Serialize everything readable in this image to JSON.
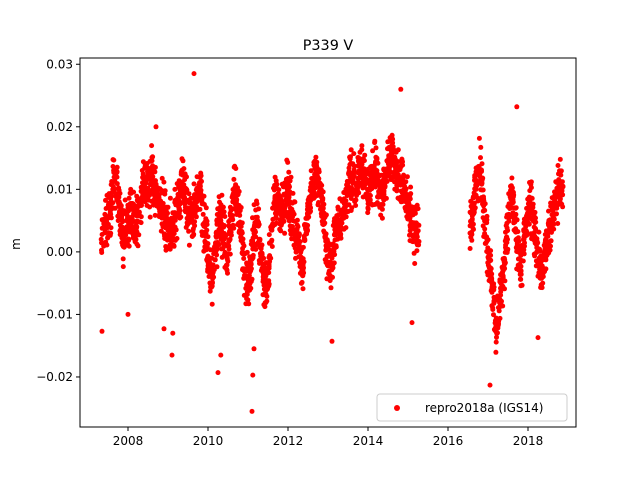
{
  "chart_data": {
    "type": "scatter",
    "title": "P339 V",
    "xlabel": "",
    "ylabel": "m",
    "xlim": [
      2006.8,
      2019.2
    ],
    "ylim": [
      -0.028,
      0.031
    ],
    "x_ticks": [
      2008,
      2010,
      2012,
      2014,
      2016,
      2018
    ],
    "x_tick_labels": [
      "2008",
      "2010",
      "2012",
      "2014",
      "2016",
      "2018"
    ],
    "y_ticks": [
      -0.02,
      -0.01,
      0.0,
      0.01,
      0.02,
      0.03
    ],
    "y_tick_labels": [
      "−0.02",
      "−0.01",
      "0.00",
      "0.01",
      "0.02",
      "0.03"
    ],
    "grid": false,
    "legend_position": "lower right",
    "series": [
      {
        "name": "repro2018a (IGS14)",
        "color": "#ff0000",
        "marker": "circle",
        "x": [
          2007.33,
          2007.45,
          2007.55,
          2007.62,
          2007.7,
          2007.78,
          2007.85,
          2007.92,
          2008.0,
          2008.08,
          2008.15,
          2008.22,
          2008.3,
          2008.38,
          2008.45,
          2008.52,
          2008.6,
          2008.68,
          2008.75,
          2008.82,
          2008.9,
          2008.98,
          2009.05,
          2009.12,
          2009.2,
          2009.28,
          2009.35,
          2009.42,
          2009.5,
          2009.58,
          2009.65,
          2009.72,
          2009.8,
          2009.88,
          2009.95,
          2010.02,
          2010.1,
          2010.18,
          2010.25,
          2010.32,
          2010.4,
          2010.48,
          2010.55,
          2010.62,
          2010.7,
          2010.78,
          2010.85,
          2010.92,
          2011.0,
          2011.08,
          2011.15,
          2011.22,
          2011.3,
          2011.38,
          2011.45,
          2011.52,
          2011.6,
          2011.68,
          2011.75,
          2011.82,
          2011.9,
          2011.98,
          2012.05,
          2012.12,
          2012.2,
          2012.28,
          2012.35,
          2012.42,
          2012.5,
          2012.58,
          2012.65,
          2012.72,
          2012.8,
          2012.88,
          2012.95,
          2013.02,
          2013.1,
          2013.18,
          2013.25,
          2013.32,
          2013.4,
          2013.48,
          2013.55,
          2013.62,
          2013.7,
          2013.78,
          2013.85,
          2013.92,
          2014.0,
          2014.08,
          2014.15,
          2014.22,
          2014.3,
          2014.38,
          2014.45,
          2014.52,
          2014.6,
          2014.68,
          2014.75,
          2014.82,
          2014.9,
          2014.98,
          2015.05,
          2015.12,
          2015.2,
          2016.55,
          2016.62,
          2016.7,
          2016.78,
          2016.85,
          2016.92,
          2017.0,
          2017.08,
          2017.15,
          2017.22,
          2017.3,
          2017.38,
          2017.45,
          2017.52,
          2017.6,
          2017.68,
          2017.75,
          2017.82,
          2017.9,
          2017.98,
          2018.05,
          2018.12,
          2018.2,
          2018.28,
          2018.35,
          2018.42,
          2018.5,
          2018.58,
          2018.65,
          2018.72,
          2018.8
        ],
        "y": [
          0.002,
          0.004,
          0.006,
          0.01,
          0.012,
          0.008,
          0.004,
          0.002,
          0.005,
          0.007,
          0.006,
          0.004,
          0.008,
          0.01,
          0.011,
          0.009,
          0.012,
          0.01,
          0.008,
          0.007,
          0.006,
          0.005,
          0.003,
          0.004,
          0.006,
          0.008,
          0.011,
          0.01,
          0.007,
          0.005,
          0.006,
          0.008,
          0.009,
          0.006,
          0.003,
          -0.002,
          -0.004,
          0.001,
          0.003,
          0.005,
          0.002,
          -0.001,
          0.004,
          0.008,
          0.01,
          0.006,
          0.002,
          -0.003,
          -0.005,
          -0.002,
          0.003,
          0.005,
          0.002,
          -0.004,
          -0.006,
          -0.002,
          0.004,
          0.008,
          0.009,
          0.006,
          0.007,
          0.01,
          0.008,
          0.005,
          0.003,
          0.001,
          -0.003,
          0.002,
          0.006,
          0.009,
          0.011,
          0.013,
          0.01,
          0.006,
          0.001,
          -0.002,
          -0.001,
          0.003,
          0.005,
          0.004,
          0.007,
          0.009,
          0.012,
          0.011,
          0.01,
          0.013,
          0.014,
          0.012,
          0.01,
          0.011,
          0.013,
          0.012,
          0.01,
          0.009,
          0.012,
          0.015,
          0.016,
          0.014,
          0.012,
          0.011,
          0.01,
          0.008,
          0.006,
          0.004,
          0.003,
          0.003,
          0.006,
          0.01,
          0.013,
          0.011,
          0.005,
          0.0,
          -0.004,
          -0.008,
          -0.012,
          -0.008,
          -0.003,
          0.002,
          0.006,
          0.01,
          0.005,
          0.0,
          -0.003,
          0.002,
          0.006,
          0.008,
          0.005,
          0.002,
          -0.001,
          -0.004,
          0.0,
          0.003,
          0.005,
          0.007,
          0.009,
          0.01
        ],
        "outliers_x": [
          2007.35,
          2008.0,
          2008.7,
          2008.9,
          2009.1,
          2009.12,
          2009.65,
          2010.25,
          2010.32,
          2011.1,
          2011.12,
          2011.15,
          2015.1,
          2017.05,
          2017.72,
          2018.25,
          2013.1,
          2014.82
        ],
        "outliers_y": [
          -0.0127,
          -0.01,
          0.02,
          -0.0123,
          -0.0165,
          -0.013,
          0.0285,
          -0.0193,
          -0.0165,
          -0.0255,
          -0.0197,
          -0.0155,
          -0.0113,
          -0.0213,
          0.0232,
          -0.0137,
          -0.0143,
          0.026
        ]
      }
    ]
  }
}
